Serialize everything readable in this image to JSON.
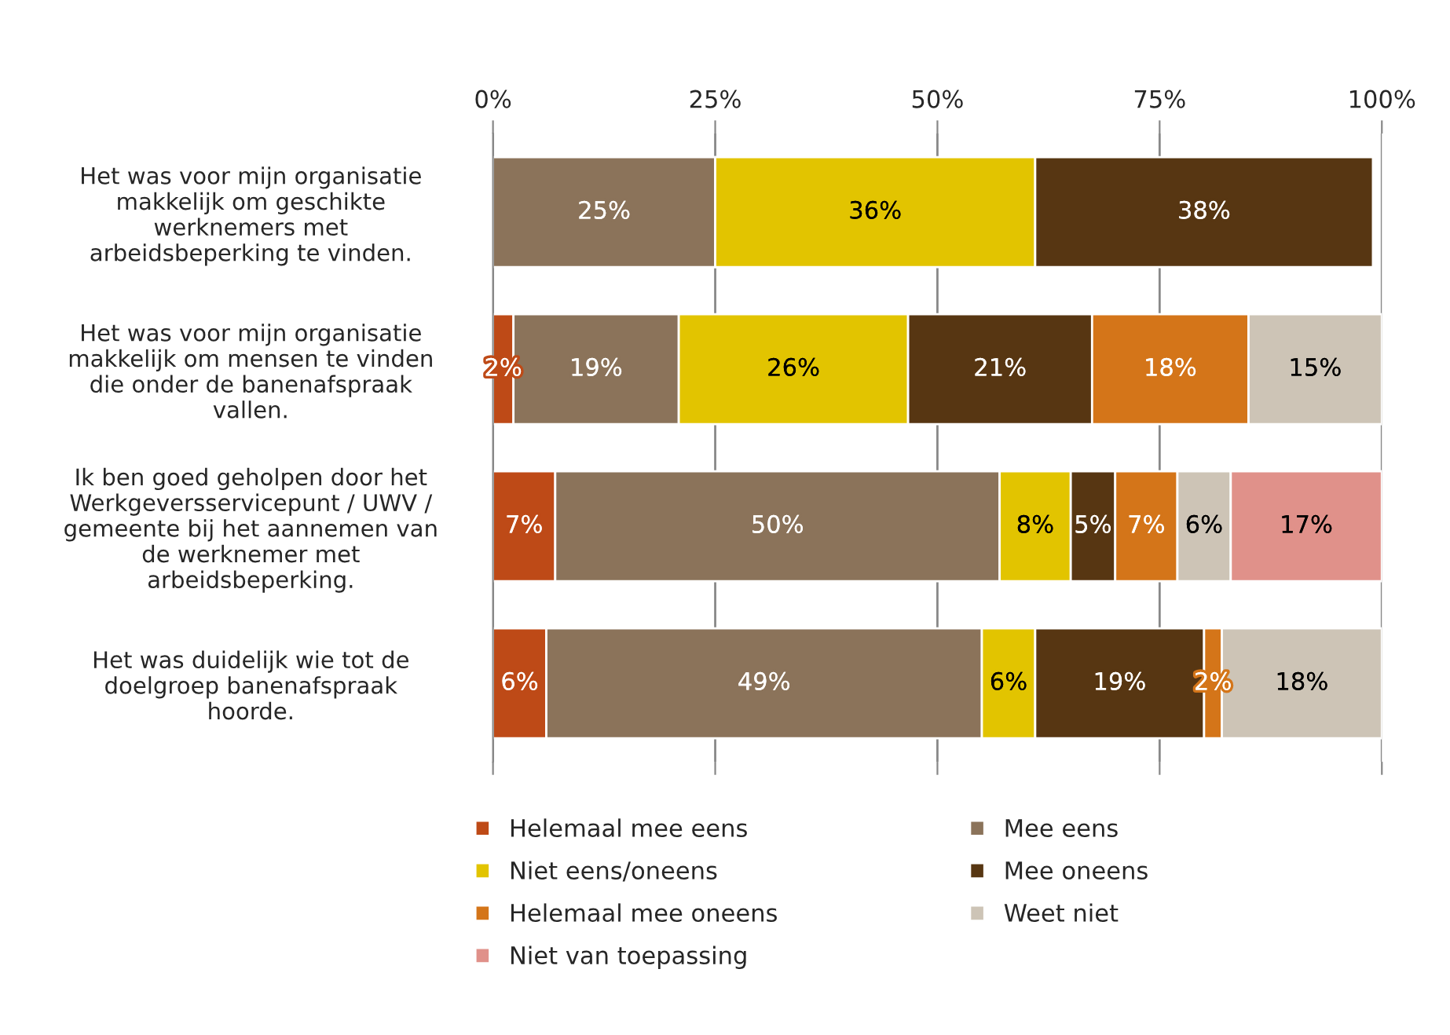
{
  "chart_data": {
    "type": "bar",
    "orientation": "horizontal",
    "stacked": true,
    "categories": [
      "Het was voor mijn organisatie makkelijk om geschikte werknemers met arbeidsbeperking te vinden.",
      "Het was voor mijn organisatie makkelijk om mensen te vinden die onder de banenafspraak vallen.",
      "Ik ben goed geholpen door het Werkgeversservicepunt / UWV / gemeente bij het aannemen van de werknemer met arbeidsbeperking.",
      "Het was duidelijk wie tot de doelgroep banenafspraak hoorde."
    ],
    "series": [
      {
        "name": "Helemaal mee eens",
        "color": "#be4a17",
        "values": [
          null,
          2.3,
          7,
          6
        ],
        "value_labels": [
          null,
          "2%",
          "7%",
          "6%"
        ]
      },
      {
        "name": "Mee eens",
        "color": "#8b735a",
        "values": [
          25,
          18.6,
          50,
          49
        ],
        "value_labels": [
          "25%",
          "19%",
          "50%",
          "49%"
        ]
      },
      {
        "name": "Niet eens/oneens",
        "color": "#e2c400",
        "values": [
          36,
          25.8,
          8,
          6
        ],
        "value_labels": [
          "36%",
          "26%",
          "8%",
          "6%"
        ]
      },
      {
        "name": "Mee oneens",
        "color": "#573612",
        "values": [
          38,
          20.7,
          5,
          19
        ],
        "value_labels": [
          "38%",
          "21%",
          "5%",
          "19%"
        ]
      },
      {
        "name": "Helemaal mee oneens",
        "color": "#d47519",
        "values": [
          null,
          17.6,
          7,
          2
        ],
        "value_labels": [
          null,
          "18%",
          "7%",
          "2%"
        ]
      },
      {
        "name": "Weet niet",
        "color": "#cdc4b6",
        "values": [
          null,
          15.0,
          6,
          18
        ],
        "value_labels": [
          null,
          "15%",
          "6%",
          "18%"
        ]
      },
      {
        "name": "Niet van toepassing",
        "color": "#e0918a",
        "values": [
          null,
          null,
          17,
          null
        ],
        "value_labels": [
          null,
          null,
          "17%",
          null
        ]
      }
    ],
    "xlim": [
      0,
      100
    ],
    "xticks": [
      {
        "value": 0,
        "label": "0%"
      },
      {
        "value": 25,
        "label": "25%"
      },
      {
        "value": 50,
        "label": "50%"
      },
      {
        "value": 75,
        "label": "75%"
      },
      {
        "value": 100,
        "label": "100%"
      }
    ],
    "grid": "x",
    "legend": "bottom"
  }
}
